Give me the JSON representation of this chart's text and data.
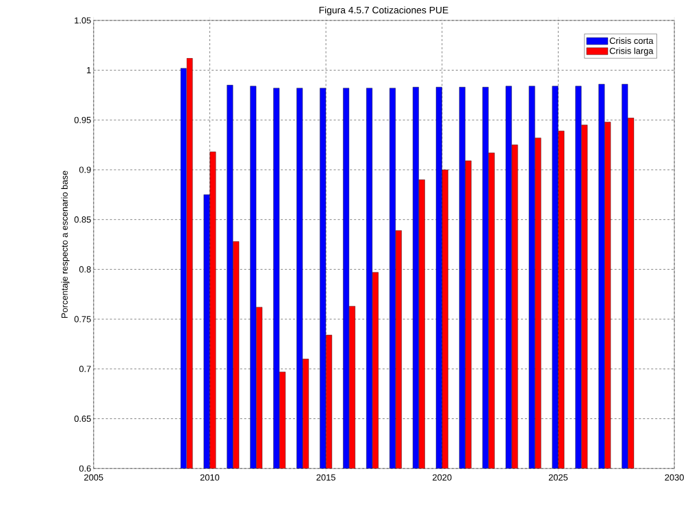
{
  "chart_data": {
    "type": "bar",
    "title": "Figura 4.5.7 Cotizaciones PUE",
    "ylabel": "Porcentaje respecto a escenario base",
    "x": [
      2009,
      2010,
      2011,
      2012,
      2013,
      2014,
      2015,
      2016,
      2017,
      2018,
      2019,
      2020,
      2021,
      2022,
      2023,
      2024,
      2025,
      2026,
      2027,
      2028
    ],
    "series": [
      {
        "name": "Crisis corta",
        "color": "#0000ff",
        "values": [
          1.002,
          0.875,
          0.985,
          0.984,
          0.982,
          0.982,
          0.982,
          0.982,
          0.982,
          0.982,
          0.983,
          0.983,
          0.983,
          0.983,
          0.984,
          0.984,
          0.984,
          0.984,
          0.986,
          0.986
        ]
      },
      {
        "name": "Crisis larga",
        "color": "#ff0000",
        "values": [
          1.012,
          0.918,
          0.828,
          0.762,
          0.697,
          0.71,
          0.734,
          0.763,
          0.797,
          0.839,
          0.89,
          0.9,
          0.909,
          0.917,
          0.925,
          0.932,
          0.939,
          0.945,
          0.948,
          0.952
        ]
      }
    ],
    "xlim": [
      2005,
      2030
    ],
    "xticks": [
      2005,
      2010,
      2015,
      2020,
      2025,
      2030
    ],
    "ylim": [
      0.6,
      1.05
    ],
    "yticks": [
      0.6,
      0.65,
      0.7,
      0.75,
      0.8,
      0.85,
      0.9,
      0.95,
      1,
      1.05
    ],
    "grid": true,
    "legend": "top right"
  }
}
